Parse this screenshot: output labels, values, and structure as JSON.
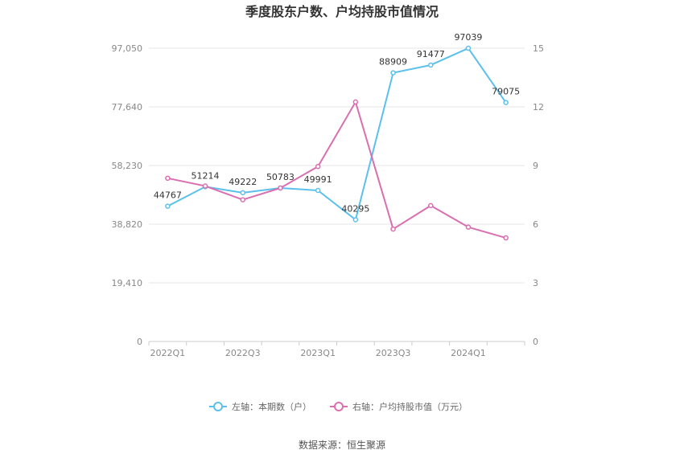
{
  "chart_data": {
    "type": "line",
    "title": "季度股东户数、户均持股市值情况",
    "categories": [
      "2022Q1",
      "2022Q2",
      "2022Q3",
      "2022Q4",
      "2023Q1",
      "2023Q2",
      "2023Q3",
      "2023Q4",
      "2024Q1",
      "2024Q2"
    ],
    "x_tick_labels": [
      "2022Q1",
      "2022Q3",
      "2023Q1",
      "2023Q3",
      "2024Q1"
    ],
    "left_axis": {
      "ylim": [
        0,
        97050
      ],
      "ticks": [
        "0",
        "19,410",
        "38,820",
        "58,230",
        "77,640",
        "97,050"
      ],
      "tick_values": [
        0,
        19410,
        38820,
        58230,
        77640,
        97050
      ]
    },
    "right_axis": {
      "ylim": [
        0,
        15
      ],
      "ticks": [
        "0",
        "3",
        "6",
        "9",
        "12",
        "15"
      ],
      "tick_values": [
        0,
        3,
        6,
        9,
        12,
        15
      ]
    },
    "series": [
      {
        "name": "左轴：本期数（户）",
        "axis": "left",
        "color": "#5bc0eb",
        "values": [
          44767,
          51214,
          49222,
          50783,
          49991,
          40295,
          88909,
          91477,
          97039,
          79075
        ],
        "labels": [
          "44767",
          "51214",
          "49222",
          "50783",
          "49991",
          "40295",
          "88909",
          "91477",
          "97039",
          "79075"
        ]
      },
      {
        "name": "右轴：户均持股市值（万元）",
        "axis": "right",
        "color": "#d96fb0",
        "values": [
          8.35,
          7.95,
          7.25,
          7.85,
          8.95,
          12.25,
          5.75,
          6.95,
          5.85,
          5.3
        ]
      }
    ],
    "grid": true,
    "legend_position": "bottom-center"
  },
  "source": "数据来源：恒生聚源"
}
